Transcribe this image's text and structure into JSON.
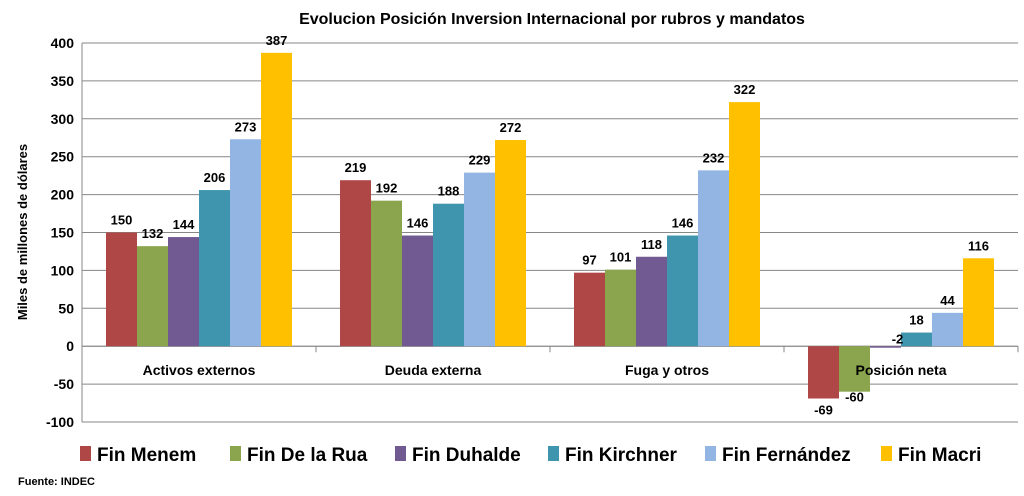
{
  "chart_data": {
    "type": "bar",
    "title": "Evolucion Posición Inversion Internacional por rubros y mandatos",
    "ylabel": "Miles de millones de dólares",
    "xlabel": "",
    "ylim": [
      -100,
      400
    ],
    "yticks": [
      -100,
      -50,
      0,
      50,
      100,
      150,
      200,
      250,
      300,
      350,
      400
    ],
    "grid": true,
    "legend": "bottom",
    "categories": [
      "Activos externos",
      "Deuda externa",
      "Fuga y otros",
      "Posición neta"
    ],
    "series": [
      {
        "name": "Fin Menem",
        "color": "#B04747",
        "values": [
          150,
          219,
          97,
          -69
        ]
      },
      {
        "name": "Fin De la Rua",
        "color": "#8BA54E",
        "values": [
          132,
          192,
          101,
          -60
        ]
      },
      {
        "name": "Fin Duhalde",
        "color": "#715A92",
        "values": [
          144,
          146,
          118,
          -2
        ]
      },
      {
        "name": "Fin Kirchner",
        "color": "#4095AE",
        "values": [
          206,
          188,
          146,
          18
        ]
      },
      {
        "name": "Fin Fernández",
        "color": "#93B5E3",
        "values": [
          273,
          229,
          232,
          44
        ]
      },
      {
        "name": "Fin Macri",
        "color": "#FFC000",
        "values": [
          387,
          272,
          322,
          116
        ]
      }
    ],
    "source": "Fuente: INDEC"
  }
}
